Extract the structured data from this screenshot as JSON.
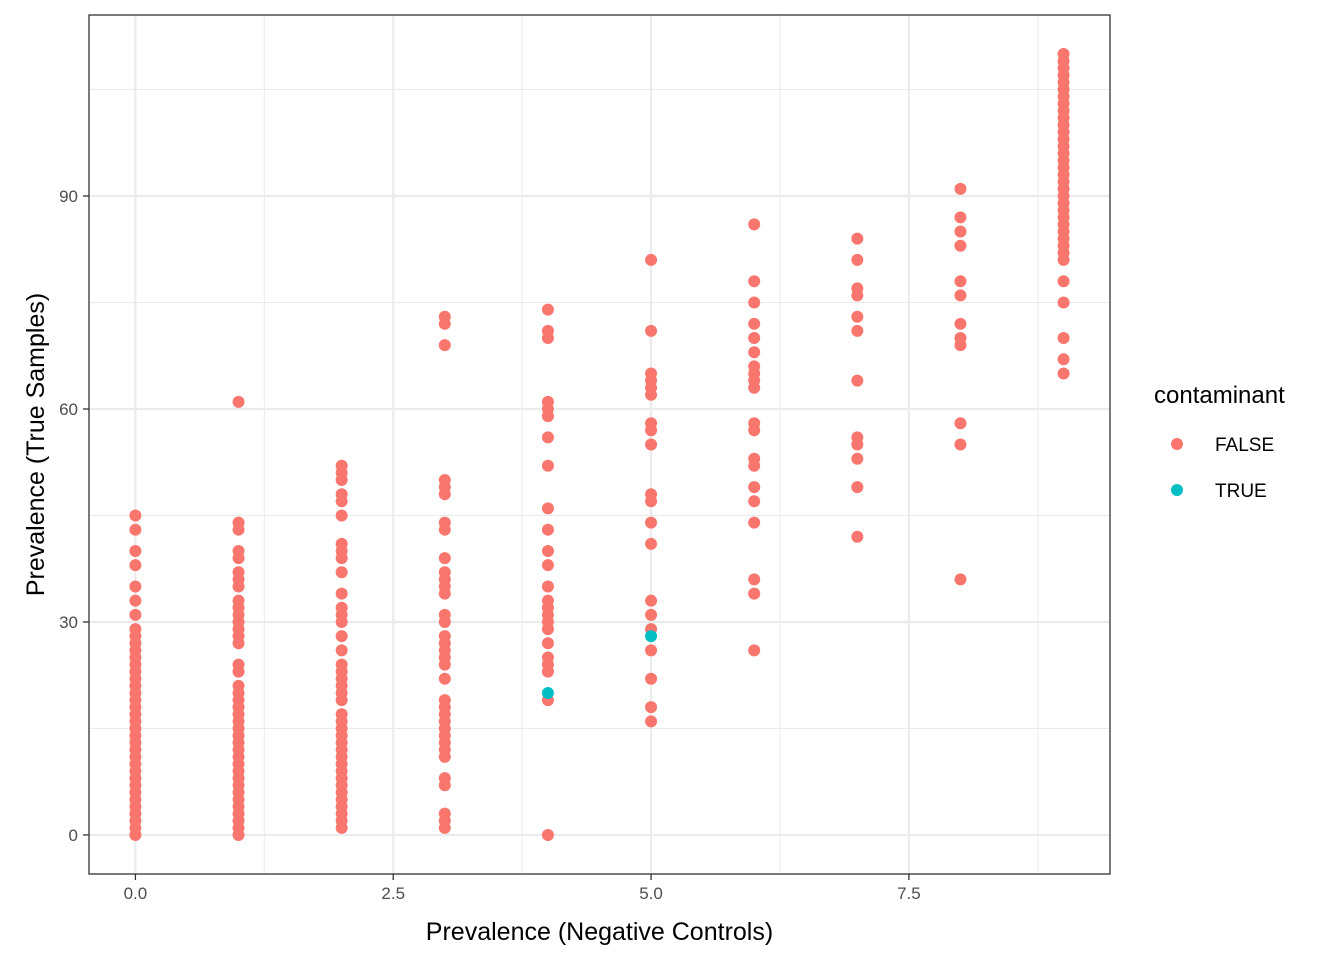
{
  "chart_data": {
    "type": "scatter",
    "title": "",
    "xlabel": "Prevalence (Negative Controls)",
    "ylabel": "Prevalence (True Samples)",
    "xlim": [
      -0.45,
      9.45
    ],
    "ylim": [
      -5.5,
      115.5
    ],
    "x_ticks": [
      0,
      2.5,
      5,
      7.5
    ],
    "x_tick_labels": [
      "0.0",
      "2.5",
      "5.0",
      "7.5"
    ],
    "y_ticks": [
      0,
      30,
      60,
      90
    ],
    "y_tick_labels": [
      "0",
      "30",
      "60",
      "90"
    ],
    "grid": true,
    "legend": {
      "title": "contaminant",
      "position": "right",
      "entries": [
        {
          "label": "FALSE",
          "color": "#F8766D"
        },
        {
          "label": "TRUE",
          "color": "#00BFC4"
        }
      ]
    },
    "series": [
      {
        "name": "FALSE",
        "color": "#F8766D",
        "points": [
          [
            0,
            45
          ],
          [
            0,
            43
          ],
          [
            0,
            40
          ],
          [
            0,
            38
          ],
          [
            0,
            35
          ],
          [
            0,
            33
          ],
          [
            0,
            31
          ],
          [
            0,
            29
          ],
          [
            0,
            28
          ],
          [
            0,
            27
          ],
          [
            0,
            26
          ],
          [
            0,
            25
          ],
          [
            0,
            24
          ],
          [
            0,
            23
          ],
          [
            0,
            22
          ],
          [
            0,
            21
          ],
          [
            0,
            20
          ],
          [
            0,
            19
          ],
          [
            0,
            18
          ],
          [
            0,
            17
          ],
          [
            0,
            16
          ],
          [
            0,
            15
          ],
          [
            0,
            14
          ],
          [
            0,
            13
          ],
          [
            0,
            12
          ],
          [
            0,
            11
          ],
          [
            0,
            10
          ],
          [
            0,
            9
          ],
          [
            0,
            8
          ],
          [
            0,
            7
          ],
          [
            0,
            6
          ],
          [
            0,
            5
          ],
          [
            0,
            4
          ],
          [
            0,
            3
          ],
          [
            0,
            2
          ],
          [
            0,
            1
          ],
          [
            0,
            0
          ],
          [
            1,
            61
          ],
          [
            1,
            44
          ],
          [
            1,
            43
          ],
          [
            1,
            40
          ],
          [
            1,
            39
          ],
          [
            1,
            37
          ],
          [
            1,
            36
          ],
          [
            1,
            35
          ],
          [
            1,
            33
          ],
          [
            1,
            32
          ],
          [
            1,
            31
          ],
          [
            1,
            30
          ],
          [
            1,
            29
          ],
          [
            1,
            28
          ],
          [
            1,
            27
          ],
          [
            1,
            24
          ],
          [
            1,
            23
          ],
          [
            1,
            21
          ],
          [
            1,
            20
          ],
          [
            1,
            19
          ],
          [
            1,
            18
          ],
          [
            1,
            17
          ],
          [
            1,
            16
          ],
          [
            1,
            15
          ],
          [
            1,
            14
          ],
          [
            1,
            13
          ],
          [
            1,
            12
          ],
          [
            1,
            11
          ],
          [
            1,
            10
          ],
          [
            1,
            9
          ],
          [
            1,
            8
          ],
          [
            1,
            7
          ],
          [
            1,
            6
          ],
          [
            1,
            5
          ],
          [
            1,
            4
          ],
          [
            1,
            3
          ],
          [
            1,
            2
          ],
          [
            1,
            1
          ],
          [
            1,
            0
          ],
          [
            2,
            52
          ],
          [
            2,
            51
          ],
          [
            2,
            50
          ],
          [
            2,
            48
          ],
          [
            2,
            47
          ],
          [
            2,
            45
          ],
          [
            2,
            41
          ],
          [
            2,
            40
          ],
          [
            2,
            39
          ],
          [
            2,
            37
          ],
          [
            2,
            34
          ],
          [
            2,
            32
          ],
          [
            2,
            31
          ],
          [
            2,
            30
          ],
          [
            2,
            28
          ],
          [
            2,
            26
          ],
          [
            2,
            24
          ],
          [
            2,
            23
          ],
          [
            2,
            22
          ],
          [
            2,
            21
          ],
          [
            2,
            20
          ],
          [
            2,
            19
          ],
          [
            2,
            17
          ],
          [
            2,
            16
          ],
          [
            2,
            15
          ],
          [
            2,
            14
          ],
          [
            2,
            13
          ],
          [
            2,
            12
          ],
          [
            2,
            11
          ],
          [
            2,
            10
          ],
          [
            2,
            9
          ],
          [
            2,
            8
          ],
          [
            2,
            7
          ],
          [
            2,
            6
          ],
          [
            2,
            5
          ],
          [
            2,
            4
          ],
          [
            2,
            3
          ],
          [
            2,
            2
          ],
          [
            2,
            1
          ],
          [
            3,
            73
          ],
          [
            3,
            72
          ],
          [
            3,
            69
          ],
          [
            3,
            50
          ],
          [
            3,
            49
          ],
          [
            3,
            48
          ],
          [
            3,
            44
          ],
          [
            3,
            43
          ],
          [
            3,
            39
          ],
          [
            3,
            37
          ],
          [
            3,
            36
          ],
          [
            3,
            35
          ],
          [
            3,
            34
          ],
          [
            3,
            31
          ],
          [
            3,
            30
          ],
          [
            3,
            28
          ],
          [
            3,
            27
          ],
          [
            3,
            26
          ],
          [
            3,
            25
          ],
          [
            3,
            24
          ],
          [
            3,
            22
          ],
          [
            3,
            19
          ],
          [
            3,
            18
          ],
          [
            3,
            17
          ],
          [
            3,
            16
          ],
          [
            3,
            15
          ],
          [
            3,
            14
          ],
          [
            3,
            13
          ],
          [
            3,
            12
          ],
          [
            3,
            11
          ],
          [
            3,
            8
          ],
          [
            3,
            7
          ],
          [
            3,
            3
          ],
          [
            3,
            2
          ],
          [
            3,
            1
          ],
          [
            4,
            74
          ],
          [
            4,
            71
          ],
          [
            4,
            70
          ],
          [
            4,
            61
          ],
          [
            4,
            60
          ],
          [
            4,
            59
          ],
          [
            4,
            56
          ],
          [
            4,
            52
          ],
          [
            4,
            46
          ],
          [
            4,
            43
          ],
          [
            4,
            40
          ],
          [
            4,
            38
          ],
          [
            4,
            35
          ],
          [
            4,
            33
          ],
          [
            4,
            32
          ],
          [
            4,
            31
          ],
          [
            4,
            30
          ],
          [
            4,
            29
          ],
          [
            4,
            27
          ],
          [
            4,
            25
          ],
          [
            4,
            24
          ],
          [
            4,
            23
          ],
          [
            4,
            19
          ],
          [
            4,
            0
          ],
          [
            5,
            81
          ],
          [
            5,
            71
          ],
          [
            5,
            65
          ],
          [
            5,
            64
          ],
          [
            5,
            63
          ],
          [
            5,
            62
          ],
          [
            5,
            58
          ],
          [
            5,
            57
          ],
          [
            5,
            55
          ],
          [
            5,
            48
          ],
          [
            5,
            47
          ],
          [
            5,
            44
          ],
          [
            5,
            41
          ],
          [
            5,
            33
          ],
          [
            5,
            31
          ],
          [
            5,
            29
          ],
          [
            5,
            26
          ],
          [
            5,
            22
          ],
          [
            5,
            18
          ],
          [
            5,
            16
          ],
          [
            6,
            86
          ],
          [
            6,
            78
          ],
          [
            6,
            75
          ],
          [
            6,
            72
          ],
          [
            6,
            70
          ],
          [
            6,
            68
          ],
          [
            6,
            66
          ],
          [
            6,
            65
          ],
          [
            6,
            64
          ],
          [
            6,
            63
          ],
          [
            6,
            58
          ],
          [
            6,
            57
          ],
          [
            6,
            53
          ],
          [
            6,
            52
          ],
          [
            6,
            49
          ],
          [
            6,
            47
          ],
          [
            6,
            44
          ],
          [
            6,
            36
          ],
          [
            6,
            34
          ],
          [
            6,
            26
          ],
          [
            7,
            84
          ],
          [
            7,
            81
          ],
          [
            7,
            77
          ],
          [
            7,
            76
          ],
          [
            7,
            73
          ],
          [
            7,
            71
          ],
          [
            7,
            64
          ],
          [
            7,
            56
          ],
          [
            7,
            55
          ],
          [
            7,
            53
          ],
          [
            7,
            49
          ],
          [
            7,
            42
          ],
          [
            8,
            91
          ],
          [
            8,
            87
          ],
          [
            8,
            85
          ],
          [
            8,
            83
          ],
          [
            8,
            78
          ],
          [
            8,
            76
          ],
          [
            8,
            72
          ],
          [
            8,
            70
          ],
          [
            8,
            69
          ],
          [
            8,
            58
          ],
          [
            8,
            55
          ],
          [
            8,
            36
          ],
          [
            9,
            110
          ],
          [
            9,
            109
          ],
          [
            9,
            108
          ],
          [
            9,
            107
          ],
          [
            9,
            106
          ],
          [
            9,
            105
          ],
          [
            9,
            104
          ],
          [
            9,
            103
          ],
          [
            9,
            102
          ],
          [
            9,
            101
          ],
          [
            9,
            100
          ],
          [
            9,
            99
          ],
          [
            9,
            98
          ],
          [
            9,
            97
          ],
          [
            9,
            96
          ],
          [
            9,
            95
          ],
          [
            9,
            94
          ],
          [
            9,
            93
          ],
          [
            9,
            92
          ],
          [
            9,
            91
          ],
          [
            9,
            90
          ],
          [
            9,
            89
          ],
          [
            9,
            88
          ],
          [
            9,
            87
          ],
          [
            9,
            86
          ],
          [
            9,
            85
          ],
          [
            9,
            84
          ],
          [
            9,
            83
          ],
          [
            9,
            82
          ],
          [
            9,
            81
          ],
          [
            9,
            78
          ],
          [
            9,
            75
          ],
          [
            9,
            70
          ],
          [
            9,
            67
          ],
          [
            9,
            65
          ]
        ]
      },
      {
        "name": "TRUE",
        "color": "#00BFC4",
        "points": [
          [
            4,
            20
          ],
          [
            5,
            28
          ]
        ]
      }
    ]
  }
}
